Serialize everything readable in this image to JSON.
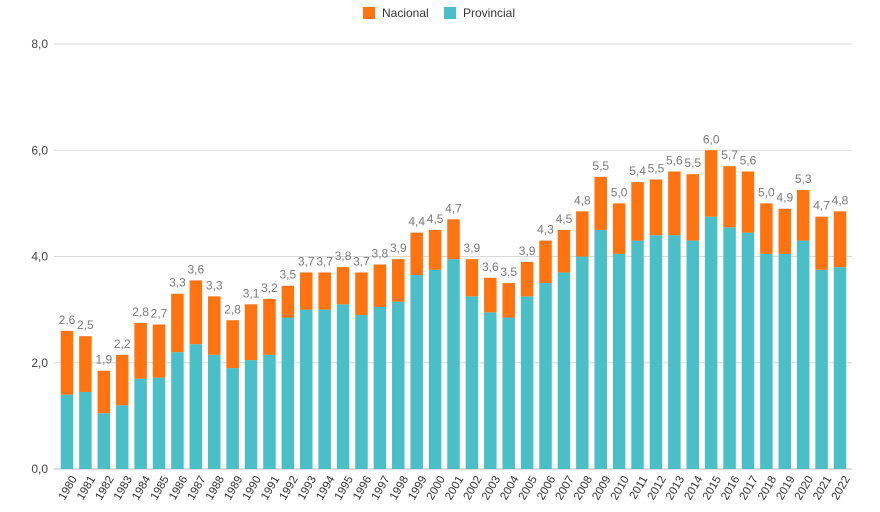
{
  "chart_data": {
    "type": "bar",
    "stacked": true,
    "title": "",
    "xlabel": "",
    "ylabel": "",
    "ylim": [
      0,
      8
    ],
    "y_ticks": [
      "0,0",
      "2,0",
      "4,0",
      "6,0",
      "8,0"
    ],
    "grid": true,
    "legend_position": "top-center",
    "categories": [
      "1980",
      "1981",
      "1982",
      "1983",
      "1984",
      "1985",
      "1986",
      "1987",
      "1988",
      "1989",
      "1990",
      "1991",
      "1992",
      "1993",
      "1994",
      "1995",
      "1996",
      "1997",
      "1998",
      "1999",
      "2000",
      "2001",
      "2002",
      "2003",
      "2004",
      "2005",
      "2006",
      "2007",
      "2008",
      "2009",
      "2010",
      "2011",
      "2012",
      "2013",
      "2014",
      "2015",
      "2016",
      "2017",
      "2018",
      "2019",
      "2020",
      "2021",
      "2022"
    ],
    "series": [
      {
        "name": "Provincial",
        "color": "#4BBFC8",
        "values": [
          1.4,
          1.45,
          1.05,
          1.2,
          1.7,
          1.72,
          2.2,
          2.35,
          2.15,
          1.9,
          2.05,
          2.15,
          2.85,
          3.0,
          3.0,
          3.1,
          2.9,
          3.05,
          3.15,
          3.65,
          3.75,
          3.95,
          3.25,
          2.95,
          2.85,
          3.25,
          3.5,
          3.7,
          4.0,
          4.5,
          4.05,
          4.3,
          4.4,
          4.4,
          4.3,
          4.75,
          4.55,
          4.45,
          4.05,
          4.05,
          4.3,
          3.75,
          3.8
        ]
      },
      {
        "name": "Nacional",
        "color": "#FF7410",
        "values": [
          1.2,
          1.05,
          0.8,
          0.95,
          1.05,
          1.0,
          1.1,
          1.2,
          1.1,
          0.9,
          1.05,
          1.05,
          0.6,
          0.7,
          0.7,
          0.7,
          0.8,
          0.8,
          0.8,
          0.8,
          0.75,
          0.75,
          0.7,
          0.65,
          0.65,
          0.65,
          0.8,
          0.8,
          0.85,
          1.0,
          0.95,
          1.1,
          1.05,
          1.2,
          1.25,
          1.25,
          1.15,
          1.15,
          0.95,
          0.85,
          0.95,
          1.0,
          1.05
        ]
      }
    ],
    "totals": [
      "2,6",
      "2,5",
      "1,9",
      "2,2",
      "2,8",
      "2,7",
      "3,3",
      "3,6",
      "3,3",
      "2,8",
      "3,1",
      "3,2",
      "3,5",
      "3,7",
      "3,7",
      "3,8",
      "3,7",
      "3,8",
      "3,9",
      "4,4",
      "4,5",
      "4,7",
      "3,9",
      "3,6",
      "3,5",
      "3,9",
      "4,3",
      "4,5",
      "4,8",
      "5,5",
      "5,0",
      "5,4",
      "5,5",
      "5,6",
      "5,5",
      "6,0",
      "5,7",
      "5,6",
      "5,0",
      "4,9",
      "5,3",
      "4,7",
      "4,8"
    ],
    "legend": [
      {
        "label": "Nacional",
        "color": "#FF7410"
      },
      {
        "label": "Provincial",
        "color": "#4BBFC8"
      }
    ]
  }
}
